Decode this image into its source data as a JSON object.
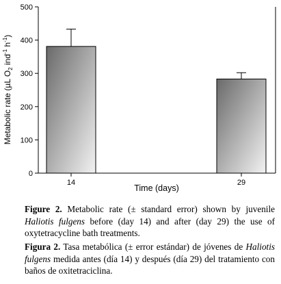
{
  "chart_data": {
    "type": "bar",
    "categories": [
      "14",
      "29"
    ],
    "values": [
      381,
      283
    ],
    "errors": [
      52,
      19
    ],
    "xlabel": "Time (days)",
    "ylabel": "Metabolic rate (µL O2 ind-1 h-1)",
    "ylim": [
      0,
      500
    ],
    "yticks": [
      0,
      100,
      200,
      300,
      400,
      500
    ],
    "grid": false,
    "bar_fill": "gradient from #6a6a6a (top-left) to #f0f0f0 (bottom-right)"
  },
  "caption_en": {
    "label": "Figure 2.",
    "text_a": " Metabolic rate (± standard error) shown by juvenile ",
    "species": "Haliotis fulgens",
    "text_b": " before (day 14) and after (day 29) the use of oxytetracycline bath treatments."
  },
  "caption_es": {
    "label": "Figura 2.",
    "text_a": " Tasa metabólica (± error estándar) de jóvenes de ",
    "species": "Haliotis fulgens",
    "text_b": " medida antes (día 14) y después (día 29) del tratamiento con baños de oxitetraciclina."
  }
}
